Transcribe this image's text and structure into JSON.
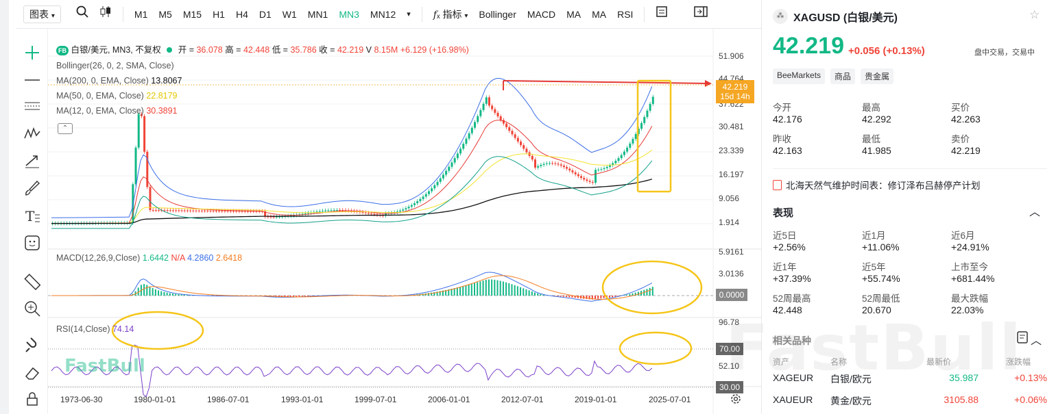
{
  "toolbar": {
    "chart_type": "图表",
    "intervals": [
      "M1",
      "M5",
      "M15",
      "H1",
      "H4",
      "D1",
      "W1",
      "MN1",
      "MN3",
      "MN12"
    ],
    "active_interval": "MN3",
    "indicators_label": "指标",
    "indicator_shortcuts": [
      "Bollinger",
      "MACD",
      "MA",
      "MA",
      "RSI"
    ]
  },
  "legend": {
    "symbol_badge": "FB",
    "symbol": "白银/美元, MN3, 不复权",
    "open_label": "开 =",
    "open": "36.078",
    "high_label": "高 =",
    "high": "42.448",
    "low_label": "低 =",
    "low": "35.786",
    "close_label": "收 =",
    "close": "42.219",
    "vol_label": "V",
    "vol": "8.15M",
    "change": "+6.129 (+16.98%)",
    "bollinger": "Bollinger(26, 0, 2, SMA, Close)",
    "ma200": "MA(200, 0, EMA, Close)",
    "ma200_val": "13.8067",
    "ma50": "MA(50, 0, EMA, Close)",
    "ma50_val": "22.8179",
    "ma12": "MA(12, 0, EMA, Close)",
    "ma12_val": "30.3891"
  },
  "price_axis": [
    "51.906",
    "44.764",
    "37.622",
    "30.481",
    "23.339",
    "16.197",
    "9.056",
    "1.914"
  ],
  "price_tag": {
    "price": "42.219",
    "timer": "15d 14h"
  },
  "macd": {
    "label": "MACD(12,26,9,Close)",
    "v1": "1.6442",
    "v2": "N/A",
    "v3": "4.2860",
    "v4": "2.6418",
    "axis": [
      "5.9161",
      "3.0136",
      "0.0000"
    ]
  },
  "rsi": {
    "label": "RSI(14,Close)",
    "value": "74.14",
    "axis": [
      "96.78",
      "70.00",
      "52.10",
      "30.00"
    ]
  },
  "time_axis": [
    "1973-06-30",
    "1980-01-01",
    "1986-07-01",
    "1993-01-01",
    "1999-07-01",
    "2006-01-01",
    "2012-07-01",
    "2019-01-01",
    "2025-07-01"
  ],
  "watermark": "FastBull",
  "quote": {
    "title": "XAGUSD (白银/美元)",
    "price": "42.219",
    "change": "+0.056",
    "change_pct": "(+0.13%)",
    "status": "盘中交易，交易中",
    "tags": [
      "BeeMarkets",
      "商品",
      "贵金属"
    ],
    "stats": [
      {
        "label": "今开",
        "value": "42.176"
      },
      {
        "label": "最高",
        "value": "42.292"
      },
      {
        "label": "买价",
        "value": "42.263",
        "color": "red"
      },
      {
        "label": "昨收",
        "value": "42.163"
      },
      {
        "label": "最低",
        "value": "41.985"
      },
      {
        "label": "卖价",
        "value": "42.219",
        "color": "green"
      }
    ],
    "news": "北海天然气维护时间表：修订泽布吕赫停产计划",
    "perf_title": "表现",
    "perf": [
      {
        "label": "近5日",
        "value": "+2.56%"
      },
      {
        "label": "近1月",
        "value": "+11.06%"
      },
      {
        "label": "近6月",
        "value": "+24.91%"
      },
      {
        "label": "近1年",
        "value": "+37.39%"
      },
      {
        "label": "近5年",
        "value": "+55.74%"
      },
      {
        "label": "上市至今",
        "value": "+681.44%"
      },
      {
        "label": "52周最高",
        "value": "42.448"
      },
      {
        "label": "52周最低",
        "value": "20.670"
      },
      {
        "label": "最大跌幅",
        "value": "22.03%",
        "color": "green"
      }
    ],
    "related_title": "相关品种",
    "related_cols": [
      "资产",
      "名称",
      "最新价",
      "涨跌幅"
    ],
    "related": [
      {
        "sym": "XAGEUR",
        "name": "白银/欧元",
        "price": "35.987",
        "chg": "+0.13%",
        "pc": "green"
      },
      {
        "sym": "XAUEUR",
        "name": "黄金/欧元",
        "price": "3105.88",
        "chg": "+0.06%",
        "pc": "red"
      }
    ]
  },
  "colors": {
    "up": "#12b886",
    "down": "#f04438",
    "accent": "#12b886",
    "boll": "#3a6ee8",
    "ma200": "#111111",
    "ma50": "#f2e32a",
    "ma12": "#e53935",
    "annot": "#f5c518"
  }
}
